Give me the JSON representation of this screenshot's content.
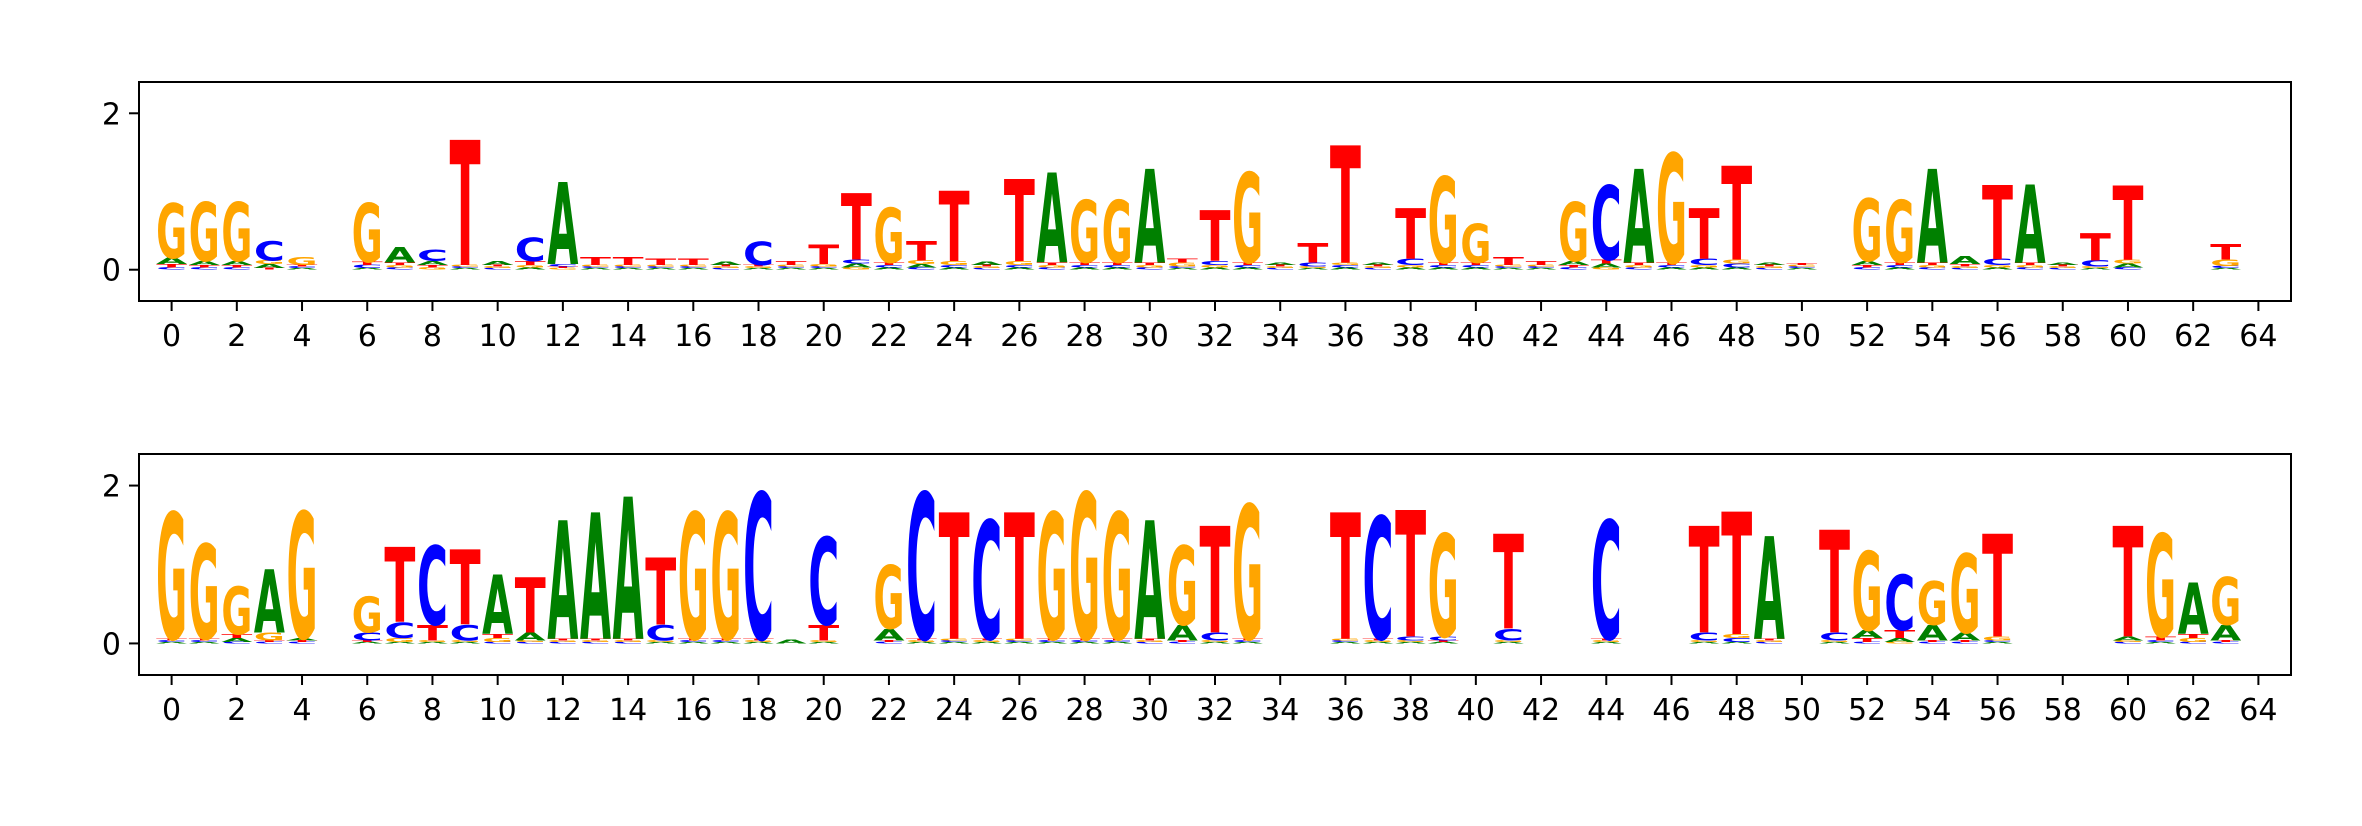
{
  "chart_data": [
    {
      "type": "logo",
      "xlim": [
        -1,
        65
      ],
      "ylim": [
        -0.4,
        2.4
      ],
      "xticks": [
        0,
        2,
        4,
        6,
        8,
        10,
        12,
        14,
        16,
        18,
        20,
        22,
        24,
        26,
        28,
        30,
        32,
        34,
        36,
        38,
        40,
        42,
        44,
        46,
        48,
        50,
        52,
        54,
        56,
        58,
        60,
        62,
        64
      ],
      "yticks": [
        0,
        2
      ],
      "series": [
        {
          "name": "A",
          "color": "#008000",
          "values": [
            0.08,
            0.05,
            0.05,
            0.05,
            0.02,
            0,
            0.02,
            0.2,
            0.05,
            0.02,
            0.05,
            0.03,
            1.05,
            0.02,
            0.02,
            0.02,
            0.02,
            0.04,
            0.02,
            0.02,
            0.02,
            0.05,
            0.03,
            0.04,
            0.03,
            0.04,
            0.03,
            1.15,
            0.03,
            0.03,
            1.2,
            0.02,
            0.03,
            0.03,
            0.03,
            0.02,
            0.03,
            0.03,
            0.03,
            0.03,
            0.03,
            0.02,
            0.02,
            0.05,
            0.05,
            1.2,
            0.03,
            0.03,
            0.03,
            0.03,
            0.02,
            0,
            0.05,
            0.03,
            1.2,
            0.1,
            0.03,
            1.0,
            0.03,
            0.02,
            0.05,
            0,
            0,
            0.02
          ]
        },
        {
          "name": "C",
          "color": "#0000ff",
          "values": [
            0.03,
            0.03,
            0.03,
            0.25,
            0.02,
            0,
            0.04,
            0.03,
            0.15,
            0.02,
            0.02,
            0.3,
            0.03,
            0.02,
            0.02,
            0.02,
            0.02,
            0.02,
            0.3,
            0.02,
            0.02,
            0.05,
            0.03,
            0.03,
            0.03,
            0.02,
            0.03,
            0.03,
            0.03,
            0.03,
            0.03,
            0.02,
            0.05,
            0.03,
            0.02,
            0.05,
            0.03,
            0.02,
            0.08,
            0.03,
            0.03,
            0.02,
            0.02,
            0.03,
            0.95,
            0.03,
            0.03,
            0.08,
            0.05,
            0.02,
            0.02,
            0,
            0.03,
            0.03,
            0.03,
            0.02,
            0.08,
            0.03,
            0.02,
            0.08,
            0.03,
            0,
            0,
            0.03
          ]
        },
        {
          "name": "G",
          "color": "#ffa500",
          "values": [
            0.7,
            0.75,
            0.75,
            0.05,
            0.1,
            0,
            0.75,
            0.03,
            0.03,
            0.02,
            0.02,
            0.03,
            0.02,
            0.02,
            0.02,
            0.02,
            0.02,
            0.02,
            0.02,
            0.02,
            0.03,
            0.03,
            0.7,
            0.05,
            0.05,
            0.02,
            0.05,
            0.03,
            0.8,
            0.8,
            0.03,
            0.05,
            0.03,
            1.15,
            0.02,
            0.02,
            0.03,
            0.02,
            0.03,
            1.1,
            0.5,
            0.02,
            0.02,
            0.75,
            0.03,
            0.03,
            1.4,
            0.03,
            0.05,
            0.02,
            0.02,
            0,
            0.8,
            0.8,
            0.03,
            0.02,
            0.03,
            0.03,
            0.02,
            0.02,
            0.05,
            0,
            0,
            0.08
          ]
        },
        {
          "name": "T",
          "color": "#ff0000",
          "values": [
            0.04,
            0.03,
            0.03,
            0.02,
            0.02,
            0,
            0.04,
            0.03,
            0.03,
            1.6,
            0.02,
            0.05,
            0.02,
            0.1,
            0.1,
            0.08,
            0.08,
            0.02,
            0.02,
            0.05,
            0.25,
            0.85,
            0.03,
            0.25,
            0.9,
            0.02,
            1.05,
            0.03,
            0.03,
            0.03,
            0.03,
            0.05,
            0.65,
            0.03,
            0.02,
            0.25,
            1.5,
            0.02,
            0.65,
            0.03,
            0.03,
            0.1,
            0.05,
            0.03,
            0.05,
            0.03,
            0.03,
            0.65,
            1.2,
            0.02,
            0.02,
            0,
            0.03,
            0.03,
            0.03,
            0.03,
            0.95,
            0.03,
            0.02,
            0.35,
            0.95,
            0,
            0,
            0.2
          ]
        }
      ]
    },
    {
      "type": "logo",
      "xlim": [
        -1,
        65
      ],
      "ylim": [
        -0.4,
        2.4
      ],
      "xticks": [
        0,
        2,
        4,
        6,
        8,
        10,
        12,
        14,
        16,
        18,
        20,
        22,
        24,
        26,
        28,
        30,
        32,
        34,
        36,
        38,
        40,
        42,
        44,
        46,
        48,
        50,
        52,
        54,
        56,
        58,
        60,
        62,
        64
      ],
      "yticks": [
        0,
        2
      ],
      "series": [
        {
          "name": "A",
          "color": "#008000",
          "values": [
            0.02,
            0.02,
            0.05,
            0.8,
            0.03,
            0,
            0.02,
            0.02,
            0.02,
            0.02,
            0.75,
            0.1,
            1.5,
            1.6,
            1.8,
            0.02,
            0.02,
            0.02,
            0.02,
            0.05,
            0.02,
            0,
            0.15,
            0.02,
            0.02,
            0.02,
            0.02,
            0.02,
            0.02,
            0.02,
            1.5,
            0.2,
            0.02,
            0.02,
            0,
            0,
            0.02,
            0.02,
            0.02,
            0.02,
            0,
            0.02,
            0,
            0,
            0.02,
            0,
            0,
            0.02,
            0.02,
            1.3,
            0,
            0.02,
            0.1,
            0.05,
            0.2,
            0.1,
            0.02,
            0,
            0,
            0,
            0.05,
            0.02,
            0.65,
            0.2
          ]
        },
        {
          "name": "C",
          "color": "#0000ff",
          "values": [
            0.02,
            0.02,
            0.02,
            0.02,
            0.02,
            0,
            0.1,
            0.2,
            1.0,
            0.2,
            0.02,
            0.02,
            0.02,
            0.02,
            0.02,
            0.2,
            0.02,
            0.02,
            1.85,
            0,
            1.1,
            0,
            0.02,
            1.85,
            0.02,
            1.5,
            0.02,
            0.02,
            0.02,
            0.02,
            0.02,
            0.02,
            0.1,
            0.02,
            0,
            0,
            0.02,
            1.55,
            0.05,
            0.05,
            0,
            0.15,
            0,
            0,
            1.5,
            0,
            0,
            0.1,
            0.05,
            0.02,
            0,
            0.1,
            0.02,
            0.7,
            0.02,
            0.02,
            0.02,
            0,
            0,
            0,
            0.02,
            0.02,
            0.02,
            0.02
          ]
        },
        {
          "name": "G",
          "color": "#ffa500",
          "values": [
            1.6,
            1.2,
            0.6,
            0.1,
            1.6,
            0,
            0.45,
            0.05,
            0.02,
            0.02,
            0.05,
            0.02,
            0.02,
            0.02,
            0.02,
            0.02,
            1.6,
            1.6,
            0.02,
            0,
            0.02,
            0,
            0.8,
            0.02,
            0.02,
            0.02,
            0.02,
            1.6,
            1.85,
            1.6,
            0.02,
            1.0,
            0.02,
            1.7,
            0,
            0,
            0.02,
            0.02,
            0.02,
            1.3,
            0,
            0.02,
            0,
            0,
            0.02,
            0,
            0,
            0.02,
            0.05,
            0.02,
            0,
            0.02,
            1.0,
            0.02,
            0.55,
            1.0,
            0.05,
            0,
            0,
            0,
            0.02,
            1.3,
            0.05,
            0.6
          ]
        },
        {
          "name": "T",
          "color": "#ff0000",
          "values": [
            0.02,
            0.02,
            0.05,
            0.02,
            0.02,
            0,
            0.02,
            0.95,
            0.2,
            0.95,
            0.05,
            0.7,
            0.02,
            0.02,
            0.02,
            0.85,
            0.02,
            0.02,
            0.02,
            0,
            0.2,
            0,
            0.02,
            0.02,
            1.6,
            0.02,
            1.6,
            0.02,
            0.02,
            0.02,
            0.02,
            0.02,
            1.35,
            0.02,
            0,
            0,
            1.6,
            0.02,
            1.6,
            0.02,
            0,
            1.2,
            0,
            0,
            0.02,
            0,
            0,
            1.35,
            1.55,
            0.02,
            0,
            1.3,
            0.05,
            0.1,
            0.02,
            0.02,
            1.3,
            0,
            0,
            0,
            1.4,
            0.05,
            0.05,
            0.02
          ]
        }
      ]
    }
  ]
}
